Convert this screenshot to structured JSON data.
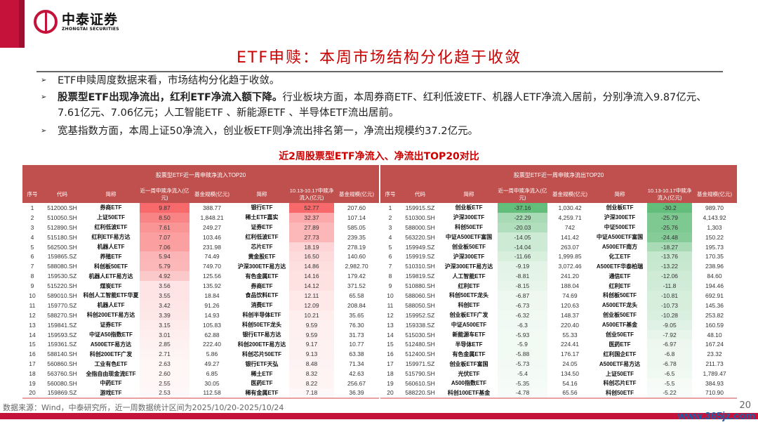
{
  "brand": {
    "cn": "中泰证券",
    "en": "ZHONGTAI SECURITIES"
  },
  "title": "ETF申赎：本周市场结构分化趋于收敛",
  "bullets": [
    {
      "bold": "",
      "text": "ETF申赎周度数据来看，市场结构分化趋于收敛。"
    },
    {
      "bold": "股票型ETF出现净流出，红利ETF净流入额下降。",
      "text": "行业板块方面，本周券商ETF、红利低波ETF、机器人ETF净流入居前，分别净流入9.87亿元、7.61亿元、7.06亿元；人工智能ETF 、新能源ETF 、半导体ETF流出居前。"
    },
    {
      "bold": "",
      "text": "宽基指数方面，本周上证50净流入，创业板ETF则净流出排名第一，净流出规模约37.2亿元。"
    }
  ],
  "table_title": "近2周股票型ETF净流入、净流出TOP20对比",
  "colors": {
    "brand": "#c4123a",
    "header": "#c0504d",
    "inflow": "#f8696b",
    "outflow": "#63be7b"
  },
  "tables": [
    {
      "caption": "股票型ETF近一周申赎净流入TOP20",
      "headers": [
        "序号",
        "代码",
        "简称",
        "近一周申赎净流入(亿元)",
        "基金规模(亿元)",
        "简称",
        "10.13-10.17申赎净流入(亿元)",
        "基金规模(亿元)"
      ],
      "rows": [
        [
          "1",
          "512000.SH",
          "券商ETF",
          "9.87",
          "388.77",
          "银行ETF",
          "52.77",
          "207.60"
        ],
        [
          "2",
          "510050.SH",
          "上证50ETF",
          "8.50",
          "1,848.21",
          "稀土ETF嘉实",
          "32.37",
          "107.14"
        ],
        [
          "3",
          "512890.SH",
          "红利低波ETF",
          "7.61",
          "249.27",
          "证券ETF",
          "27.89",
          "585.05"
        ],
        [
          "4",
          "515180.SH",
          "红利ETF易方达",
          "7.07",
          "103.46",
          "红利低波ETF",
          "27.73",
          "239.35"
        ],
        [
          "5",
          "562500.SH",
          "机器人ETF",
          "7.06",
          "231.98",
          "芯片ETF",
          "18.19",
          "278.19"
        ],
        [
          "6",
          "159865.SZ",
          "养殖ETF",
          "5.94",
          "74.49",
          "黄金股ETF",
          "16.50",
          "140.60"
        ],
        [
          "7",
          "588080.SH",
          "科创板50ETF",
          "5.79",
          "749.70",
          "沪深300ETF易方达",
          "14.86",
          "2,982.70"
        ],
        [
          "8",
          "159530.SZ",
          "机器人ETF易方达",
          "4.92",
          "125.56",
          "有色金属ETF",
          "14.16",
          "179.42"
        ],
        [
          "9",
          "515220.SH",
          "煤炭ETF",
          "3.56",
          "135.92",
          "券商ETF",
          "14.12",
          "371.52"
        ],
        [
          "10",
          "589010.SH",
          "科创人工智能ETF华夏",
          "3.55",
          "18.84",
          "食品饮料ETF",
          "12.11",
          "65.58"
        ],
        [
          "11",
          "159770.SZ",
          "机器人ETF",
          "3.42",
          "91.26",
          "消费ETF",
          "12.09",
          "208.84"
        ],
        [
          "12",
          "588270.SH",
          "科创200ETF易方达",
          "3.39",
          "14.93",
          "科创半导体ETF",
          "10.21",
          "35.65"
        ],
        [
          "13",
          "159841.SZ",
          "证券ETF",
          "3.15",
          "105.83",
          "科创50ETF龙头",
          "9.59",
          "76.30"
        ],
        [
          "14",
          "159593.SZ",
          "中证A50指数ETF",
          "3.01",
          "62.88",
          "银行ETF易方达",
          "9.59",
          "31.73"
        ],
        [
          "15",
          "159361.SZ",
          "A500ETF易方达",
          "2.85",
          "222.40",
          "科创200ETF易方达",
          "9.17",
          "10.77"
        ],
        [
          "16",
          "588140.SH",
          "科创200ETF广发",
          "2.71",
          "5.86",
          "科创芯片50ETF",
          "9.13",
          "63.38"
        ],
        [
          "17",
          "560860.SH",
          "工业有色ETF",
          "2.63",
          "49.27",
          "银行ETF天弘",
          "8.48",
          "71.34"
        ],
        [
          "18",
          "563760.SH",
          "全指自由现金流ETF",
          "2.60",
          "6.85",
          "稀土ETF",
          "8.32",
          "42.63"
        ],
        [
          "19",
          "560080.SH",
          "中药ETF",
          "2.55",
          "30.05",
          "医药ETF",
          "8.22",
          "256.67"
        ],
        [
          "20",
          "159869.SZ",
          "游戏ETF",
          "2.53",
          "112.58",
          "稀有金属ETF",
          "7.18",
          "36.39"
        ]
      ]
    },
    {
      "caption": "股票型ETF近一周申赎净流出TOP20",
      "headers": [
        "序号",
        "代码",
        "简称",
        "近一周申赎净流入(亿元)",
        "基金规模(亿元)",
        "简称",
        "10.13-10.17申赎净流入(亿元)",
        "基金规模(亿元)"
      ],
      "rows": [
        [
          "1",
          "159915.SZ",
          "创业板ETF",
          "-37.16",
          "1,030.42",
          "创业板ETF",
          "-30.2",
          "989.70"
        ],
        [
          "2",
          "510300.SH",
          "沪深300ETF",
          "-22.29",
          "4,259.71",
          "沪深300ETF",
          "-25.79",
          "4,143.92"
        ],
        [
          "3",
          "588000.SH",
          "科创50ETF",
          "-20.03",
          "742",
          "中证500ETF",
          "-25.76",
          "1,303"
        ],
        [
          "4",
          "563220.SH",
          "中证A500ETF富国",
          "-14.05",
          "141.42",
          "中证A500ETF富国",
          "-24.48",
          "150.22"
        ],
        [
          "5",
          "159949.SZ",
          "创业板50ETF",
          "-14.04",
          "263.07",
          "A500ETF南方",
          "-18.27",
          "195.73"
        ],
        [
          "6",
          "159919.SZ",
          "沪深300ETF",
          "-11.66",
          "1,999.85",
          "化工ETF",
          "-13.76",
          "170.35"
        ],
        [
          "7",
          "510310.SH",
          "沪深300ETF易方达",
          "-9.19",
          "3,072.46",
          "A500ETF华泰柏瑞",
          "-13.22",
          "238.96"
        ],
        [
          "8",
          "159819.SZ",
          "人工智能ETF",
          "-8.81",
          "241.20",
          "通信ETF",
          "-12.06",
          "84.60"
        ],
        [
          "9",
          "510880.SH",
          "红利ETF",
          "-8.15",
          "188.04",
          "红利ETF",
          "-11.8",
          "194.46"
        ],
        [
          "10",
          "588060.SH",
          "科创50ETF龙头",
          "-6.87",
          "74.69",
          "科创板50ETF",
          "-10.81",
          "692.91"
        ],
        [
          "11",
          "588050.SH",
          "科创ETF",
          "-6.73",
          "120.63",
          "A500ETF龙头",
          "-10.73",
          "145.36"
        ],
        [
          "12",
          "159952.SZ",
          "创业板ETF广发",
          "-6.32",
          "148.37",
          "创业板50ETF",
          "-10.28",
          "253.82"
        ],
        [
          "13",
          "159338.SZ",
          "中证A500ETF",
          "-6.3",
          "220.40",
          "A500ETF基金",
          "-9.05",
          "160.59"
        ],
        [
          "14",
          "515030.SH",
          "新能源车ETF",
          "-5.93",
          "55.33",
          "创业50ETF",
          "-7.92",
          "48.10"
        ],
        [
          "15",
          "512480.SH",
          "半导体ETF",
          "-5.9",
          "224.41",
          "医药ETF",
          "-6.97",
          "167.24"
        ],
        [
          "16",
          "512400.SH",
          "有色金属ETF",
          "-5.88",
          "176.17",
          "红利国企ETF",
          "-6.8",
          "23.32"
        ],
        [
          "17",
          "159971.SZ",
          "创业板ETF富国",
          "-5.73",
          "24.05",
          "A500ETF易方达",
          "-6.78",
          "211.73"
        ],
        [
          "18",
          "515790.SH",
          "光伏ETF",
          "-5.4",
          "134.50",
          "上证50ETF",
          "-6.5",
          "1,789.47"
        ],
        [
          "19",
          "560610.SH",
          "A500指数ETF",
          "-5.35",
          "54.16",
          "科创芯片ETF",
          "-5.5",
          "384.93"
        ],
        [
          "20",
          "588220.SH",
          "科创100ETF基金",
          "-4.78",
          "65.56",
          "科创50ETF",
          "-5.22",
          "710.90"
        ]
      ]
    }
  ],
  "footer": {
    "source": "数据来源：Wind，中泰研究所，近一周数据统计区间为2025/10/20-2025/10/24",
    "page": "20",
    "watermark": "www.365jz.com"
  }
}
